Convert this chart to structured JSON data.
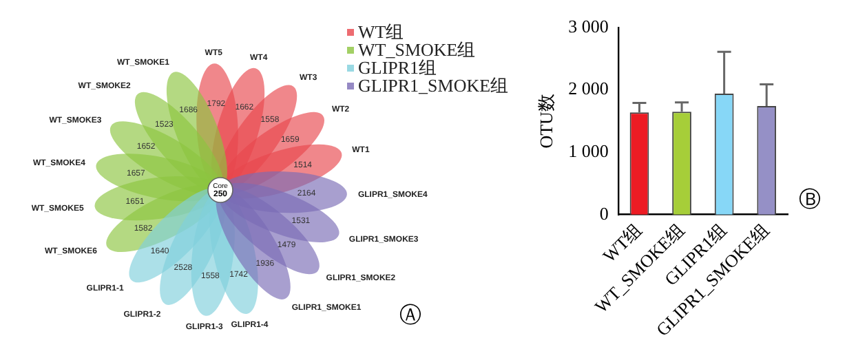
{
  "chart_data": [
    {
      "type": "other",
      "legend": "top right",
      "data_labels": true,
      "categories": [
        "WT1",
        "WT2",
        "WT3",
        "WT4",
        "WT5",
        "WT_SMOKE1",
        "WT_SMOKE2",
        "WT_SMOKE3",
        "WT_SMOKE4",
        "WT_SMOKE5",
        "WT_SMOKE6",
        "GLIPR1-1",
        "GLIPR1-2",
        "GLIPR1-3",
        "GLIPR1-4",
        "GLIPR1_SMOKE1",
        "GLIPR1_SMOKE2",
        "GLIPR1_SMOKE3",
        "GLIPR1_SMOKE4"
      ],
      "series": [
        {
          "name": "WT组",
          "color": "#e8474d",
          "values": [
            1514,
            1659,
            1558,
            1662,
            1792,
            null,
            null,
            null,
            null,
            null,
            null,
            null,
            null,
            null,
            null,
            null,
            null,
            null,
            null
          ]
        },
        {
          "name": "WT_SMOKE组",
          "color": "#8cc43f",
          "values": [
            null,
            null,
            null,
            null,
            null,
            1686,
            1523,
            1652,
            1657,
            1651,
            1582,
            null,
            null,
            null,
            null,
            null,
            null,
            null,
            null
          ]
        },
        {
          "name": "GLIPR1组",
          "color": "#7fd0dc",
          "values": [
            null,
            null,
            null,
            null,
            null,
            null,
            null,
            null,
            null,
            null,
            null,
            1640,
            2528,
            1558,
            1742,
            null,
            null,
            null,
            null
          ]
        },
        {
          "name": "GLIPR1_SMOKE组",
          "color": "#7a6cb5",
          "values": [
            null,
            null,
            null,
            null,
            null,
            null,
            null,
            null,
            null,
            null,
            null,
            null,
            null,
            null,
            null,
            1936,
            1479,
            1531,
            2164
          ]
        }
      ],
      "annotations": [
        "Core",
        "250",
        "Ⓐ"
      ]
    },
    {
      "type": "bar",
      "ylabel": "OTU数",
      "categories": [
        "WT组",
        "WT_SMOKE组",
        "GLIPR1组",
        "GLIPR1_SMOKE组"
      ],
      "values": [
        1640,
        1650,
        1940,
        1740
      ],
      "colors": [
        "#ed1c24",
        "#a6ce39",
        "#87d7f7",
        "#9590c6"
      ],
      "errors": [
        [
          1640,
          1790
        ],
        [
          1650,
          1800
        ],
        [
          1940,
          2610
        ],
        [
          1740,
          2090
        ]
      ],
      "ylim": [
        0,
        3000
      ],
      "yticks": [
        0,
        {
          "value": 1000,
          "label": "1 000"
        },
        {
          "value": 2000,
          "label": "2 000"
        },
        {
          "value": 3000,
          "label": "3 000"
        }
      ],
      "grid": false,
      "legend": false,
      "annotations": [
        "Ⓑ"
      ]
    }
  ]
}
